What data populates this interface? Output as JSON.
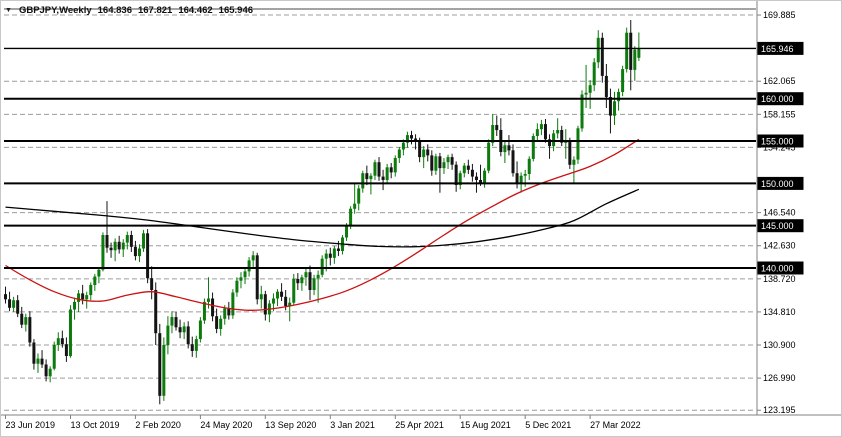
{
  "window": {
    "background": "#ffffff"
  },
  "header": {
    "dropdown_icon": "▼",
    "symbol_timeframe": "GBPJPY,Weekly",
    "open": "164.836",
    "high": "167.821",
    "low": "164.462",
    "close": "165.946"
  },
  "chart_data": {
    "type": "candlestick",
    "symbol": "GBPJPY",
    "timeframe": "Weekly",
    "current_ohlc": {
      "open": 164.836,
      "high": 167.821,
      "low": 164.462,
      "close": 165.946
    },
    "y_axis": {
      "range": [
        122.75,
        170.6
      ],
      "ticks": [
        "169.885",
        "162.065",
        "158.155",
        "154.245",
        "146.540",
        "142.630",
        "138.720",
        "134.810",
        "130.900",
        "126.990",
        "123.195"
      ],
      "boxed_levels": [
        "165.946",
        "160.000",
        "155.000",
        "150.000",
        "145.000",
        "140.000"
      ]
    },
    "x_axis": {
      "labels": [
        "23 Jun 2019",
        "13 Oct 2019",
        "2 Feb 2020",
        "24 May 2020",
        "13 Sep 2020",
        "3 Jan 2021",
        "25 Apr 2021",
        "15 Aug 2021",
        "5 Dec 2021",
        "27 Mar 2022"
      ],
      "label_every_n_candles": 16
    },
    "horizontal_lines": {
      "levels": [
        140.0,
        145.0,
        150.0,
        155.0,
        160.0
      ],
      "bid_line": 165.946
    },
    "candles": [
      [
        136.9,
        137.8,
        135.8,
        136.3
      ],
      [
        136.3,
        137.2,
        134.9,
        135.3
      ],
      [
        135.3,
        136.6,
        134.8,
        136.2
      ],
      [
        136.2,
        136.8,
        134.2,
        134.6
      ],
      [
        134.6,
        135.4,
        132.9,
        133.3
      ],
      [
        133.3,
        134.6,
        132.5,
        134.2
      ],
      [
        134.2,
        134.9,
        130.7,
        131.2
      ],
      [
        131.2,
        131.6,
        128.0,
        128.7
      ],
      [
        128.7,
        129.9,
        127.6,
        129.3
      ],
      [
        129.3,
        130.3,
        128.2,
        128.6
      ],
      [
        128.6,
        129.2,
        126.6,
        127.2
      ],
      [
        127.2,
        128.4,
        126.5,
        128.1
      ],
      [
        128.1,
        131.3,
        127.9,
        130.9
      ],
      [
        130.9,
        132.4,
        130.2,
        131.7
      ],
      [
        131.7,
        132.6,
        130.6,
        131.0
      ],
      [
        131.0,
        131.8,
        128.9,
        129.6
      ],
      [
        129.6,
        135.6,
        129.4,
        135.1
      ],
      [
        135.1,
        136.5,
        133.9,
        136.0
      ],
      [
        136.0,
        137.4,
        134.8,
        137.0
      ],
      [
        137.0,
        138.0,
        135.7,
        136.3
      ],
      [
        136.3,
        137.2,
        135.2,
        136.8
      ],
      [
        136.8,
        138.3,
        136.2,
        138.0
      ],
      [
        138.0,
        139.3,
        137.3,
        139.0
      ],
      [
        139.0,
        140.1,
        138.2,
        139.8
      ],
      [
        139.8,
        144.2,
        139.6,
        143.9
      ],
      [
        143.9,
        147.9,
        141.8,
        142.4
      ],
      [
        142.4,
        143.0,
        141.2,
        142.1
      ],
      [
        142.1,
        143.5,
        140.8,
        143.1
      ],
      [
        143.1,
        143.8,
        141.7,
        142.2
      ],
      [
        142.2,
        143.4,
        141.3,
        143.0
      ],
      [
        143.0,
        144.3,
        142.2,
        143.9
      ],
      [
        143.9,
        144.4,
        141.9,
        142.5
      ],
      [
        142.5,
        143.2,
        140.9,
        141.4
      ],
      [
        141.4,
        142.8,
        140.7,
        142.3
      ],
      [
        142.3,
        144.5,
        141.9,
        144.1
      ],
      [
        144.1,
        144.6,
        138.2,
        138.8
      ],
      [
        138.8,
        140.2,
        136.3,
        137.4
      ],
      [
        137.4,
        138.3,
        130.9,
        132.3
      ],
      [
        132.3,
        133.4,
        123.9,
        124.9
      ],
      [
        124.9,
        131.8,
        124.3,
        130.9
      ],
      [
        130.9,
        134.3,
        129.8,
        133.2
      ],
      [
        133.2,
        134.9,
        132.3,
        134.2
      ],
      [
        134.2,
        134.8,
        132.6,
        133.0
      ],
      [
        133.0,
        133.9,
        131.7,
        132.4
      ],
      [
        132.4,
        133.6,
        131.6,
        133.1
      ],
      [
        133.1,
        133.7,
        130.5,
        131.0
      ],
      [
        131.0,
        131.9,
        129.5,
        130.2
      ],
      [
        130.2,
        132.0,
        129.4,
        131.6
      ],
      [
        131.6,
        134.2,
        131.2,
        133.8
      ],
      [
        133.8,
        136.4,
        133.4,
        136.0
      ],
      [
        136.0,
        138.9,
        135.2,
        136.4
      ],
      [
        136.4,
        137.1,
        133.7,
        134.3
      ],
      [
        134.3,
        135.2,
        132.3,
        132.8
      ],
      [
        132.8,
        134.4,
        132.0,
        134.0
      ],
      [
        134.0,
        135.6,
        133.3,
        135.2
      ],
      [
        135.2,
        136.0,
        133.9,
        134.4
      ],
      [
        134.4,
        137.5,
        134.0,
        137.1
      ],
      [
        137.1,
        138.9,
        136.6,
        138.5
      ],
      [
        138.5,
        139.5,
        137.6,
        138.9
      ],
      [
        138.9,
        140.0,
        138.1,
        139.6
      ],
      [
        139.6,
        141.3,
        139.0,
        140.9
      ],
      [
        140.9,
        142.0,
        139.9,
        141.5
      ],
      [
        141.5,
        141.8,
        135.7,
        136.3
      ],
      [
        136.3,
        137.9,
        135.2,
        136.9
      ],
      [
        136.9,
        137.3,
        133.8,
        134.5
      ],
      [
        134.5,
        136.2,
        133.6,
        135.8
      ],
      [
        135.8,
        137.0,
        134.9,
        136.4
      ],
      [
        136.4,
        137.5,
        135.5,
        137.2
      ],
      [
        137.2,
        138.2,
        136.1,
        136.6
      ],
      [
        136.6,
        137.4,
        135.0,
        135.5
      ],
      [
        135.5,
        136.5,
        133.7,
        135.9
      ],
      [
        135.9,
        139.3,
        135.6,
        138.7
      ],
      [
        138.7,
        139.4,
        137.4,
        138.2
      ],
      [
        138.2,
        139.2,
        137.3,
        138.9
      ],
      [
        138.9,
        140.1,
        137.9,
        139.5
      ],
      [
        139.5,
        140.3,
        136.2,
        137.4
      ],
      [
        137.4,
        139.2,
        136.8,
        138.8
      ],
      [
        138.8,
        139.7,
        135.9,
        139.2
      ],
      [
        139.2,
        141.5,
        138.9,
        141.1
      ],
      [
        141.1,
        142.2,
        139.6,
        141.7
      ],
      [
        141.7,
        142.4,
        140.3,
        141.2
      ],
      [
        141.2,
        142.6,
        140.5,
        142.3
      ],
      [
        142.3,
        143.2,
        141.4,
        142.0
      ],
      [
        142.0,
        143.9,
        141.6,
        143.6
      ],
      [
        143.6,
        145.3,
        143.2,
        145.0
      ],
      [
        145.0,
        147.3,
        144.6,
        147.0
      ],
      [
        147.0,
        150.1,
        146.4,
        147.6
      ],
      [
        147.6,
        149.8,
        146.8,
        149.4
      ],
      [
        149.4,
        151.5,
        148.9,
        151.2
      ],
      [
        151.2,
        152.1,
        149.8,
        150.5
      ],
      [
        150.5,
        151.2,
        148.7,
        150.9
      ],
      [
        150.9,
        152.8,
        150.4,
        152.5
      ],
      [
        152.5,
        153.1,
        150.3,
        150.8
      ],
      [
        150.8,
        151.6,
        149.2,
        150.4
      ],
      [
        150.4,
        152.3,
        149.9,
        151.9
      ],
      [
        151.9,
        152.4,
        150.6,
        151.3
      ],
      [
        151.3,
        153.3,
        150.8,
        153.0
      ],
      [
        153.0,
        154.3,
        152.4,
        154.0
      ],
      [
        154.0,
        155.2,
        153.3,
        154.8
      ],
      [
        154.8,
        156.1,
        154.2,
        155.7
      ],
      [
        155.7,
        156.2,
        154.6,
        155.3
      ],
      [
        155.3,
        155.8,
        154.0,
        155.0
      ],
      [
        155.0,
        155.4,
        152.5,
        153.1
      ],
      [
        153.1,
        154.4,
        151.8,
        154.0
      ],
      [
        154.0,
        154.6,
        152.6,
        153.3
      ],
      [
        153.3,
        153.9,
        150.9,
        151.5
      ],
      [
        151.5,
        153.5,
        151.0,
        153.2
      ],
      [
        153.2,
        153.6,
        148.9,
        151.8
      ],
      [
        151.8,
        153.0,
        151.1,
        152.5
      ],
      [
        152.5,
        153.4,
        151.7,
        153.1
      ],
      [
        153.1,
        153.5,
        151.6,
        152.2
      ],
      [
        152.2,
        152.6,
        149.0,
        149.8
      ],
      [
        149.8,
        151.5,
        149.3,
        151.2
      ],
      [
        151.2,
        152.4,
        150.7,
        152.1
      ],
      [
        152.1,
        152.8,
        151.1,
        151.6
      ],
      [
        151.6,
        152.3,
        150.2,
        150.8
      ],
      [
        150.8,
        151.3,
        148.9,
        150.4
      ],
      [
        150.4,
        152.2,
        149.7,
        150.1
      ],
      [
        150.1,
        151.8,
        149.5,
        151.5
      ],
      [
        151.5,
        155.2,
        151.2,
        154.8
      ],
      [
        154.8,
        158.2,
        154.4,
        156.9
      ],
      [
        156.9,
        158.0,
        155.6,
        156.3
      ],
      [
        156.3,
        157.7,
        153.2,
        153.7
      ],
      [
        153.7,
        154.9,
        152.4,
        154.5
      ],
      [
        154.5,
        155.7,
        153.3,
        153.9
      ],
      [
        153.9,
        154.6,
        150.8,
        151.2
      ],
      [
        151.2,
        152.6,
        149.4,
        150.0
      ],
      [
        150.0,
        151.3,
        148.9,
        150.9
      ],
      [
        150.9,
        151.6,
        149.6,
        151.1
      ],
      [
        151.1,
        153.2,
        150.4,
        152.9
      ],
      [
        152.9,
        155.9,
        152.6,
        155.6
      ],
      [
        155.6,
        157.1,
        154.9,
        156.4
      ],
      [
        156.4,
        157.5,
        155.7,
        157.0
      ],
      [
        157.0,
        157.6,
        154.8,
        155.2
      ],
      [
        155.2,
        155.8,
        152.9,
        154.4
      ],
      [
        154.4,
        156.3,
        153.8,
        155.9
      ],
      [
        155.9,
        157.7,
        155.3,
        156.3
      ],
      [
        156.3,
        156.8,
        154.4,
        154.8
      ],
      [
        154.8,
        156.4,
        152.9,
        154.9
      ],
      [
        154.9,
        155.4,
        151.7,
        152.2
      ],
      [
        152.2,
        153.2,
        150.1,
        152.8
      ],
      [
        152.8,
        156.8,
        152.3,
        156.5
      ],
      [
        156.5,
        161.0,
        156.1,
        160.5
      ],
      [
        160.5,
        164.0,
        158.9,
        160.7
      ],
      [
        160.7,
        162.2,
        158.8,
        161.6
      ],
      [
        161.6,
        164.8,
        160.9,
        164.3
      ],
      [
        164.3,
        168.1,
        163.6,
        167.2
      ],
      [
        167.2,
        167.8,
        161.9,
        162.7
      ],
      [
        162.7,
        164.1,
        158.9,
        160.2
      ],
      [
        160.2,
        161.2,
        155.9,
        158.0
      ],
      [
        158.0,
        160.8,
        156.9,
        159.7
      ],
      [
        159.7,
        161.2,
        158.6,
        160.8
      ],
      [
        160.8,
        163.9,
        160.3,
        163.5
      ],
      [
        163.5,
        168.4,
        163.1,
        167.8
      ],
      [
        167.8,
        169.3,
        161.0,
        163.4
      ],
      [
        163.4,
        166.2,
        162.1,
        165.8
      ],
      [
        164.836,
        167.821,
        164.462,
        165.946
      ]
    ],
    "moving_averages": [
      {
        "name": "ma-slow-line",
        "color": "#000000",
        "points": [
          [
            0,
            147.2
          ],
          [
            12,
            146.7
          ],
          [
            24,
            146.2
          ],
          [
            36,
            145.6
          ],
          [
            48,
            144.8
          ],
          [
            60,
            144.0
          ],
          [
            72,
            143.3
          ],
          [
            84,
            142.8
          ],
          [
            92,
            142.55
          ],
          [
            100,
            142.5
          ],
          [
            108,
            142.7
          ],
          [
            116,
            143.1
          ],
          [
            124,
            143.7
          ],
          [
            132,
            144.5
          ],
          [
            140,
            145.6
          ],
          [
            148,
            147.6
          ],
          [
            156,
            149.3
          ]
        ]
      },
      {
        "name": "ma-fast-line",
        "color": "#cc1111",
        "points": [
          [
            0,
            140.3
          ],
          [
            6,
            138.6
          ],
          [
            12,
            137.2
          ],
          [
            18,
            136.3
          ],
          [
            24,
            136.1
          ],
          [
            30,
            136.8
          ],
          [
            36,
            137.2
          ],
          [
            42,
            136.6
          ],
          [
            48,
            135.9
          ],
          [
            54,
            135.3
          ],
          [
            60,
            135.0
          ],
          [
            66,
            135.2
          ],
          [
            72,
            135.7
          ],
          [
            78,
            136.4
          ],
          [
            84,
            137.3
          ],
          [
            90,
            138.6
          ],
          [
            96,
            140.2
          ],
          [
            102,
            142.0
          ],
          [
            108,
            143.9
          ],
          [
            114,
            145.7
          ],
          [
            120,
            147.3
          ],
          [
            126,
            148.8
          ],
          [
            132,
            150.0
          ],
          [
            138,
            151.0
          ],
          [
            144,
            152.0
          ],
          [
            150,
            153.4
          ],
          [
            156,
            155.2
          ]
        ]
      }
    ],
    "colors": {
      "bull": "#0c7a0c",
      "bear": "#141414",
      "grid": "#9c9c9c",
      "level_line": "#000000",
      "axis_text": "#000000",
      "box_bg": "#000000",
      "box_text": "#ffffff",
      "separator": "#808080"
    }
  }
}
